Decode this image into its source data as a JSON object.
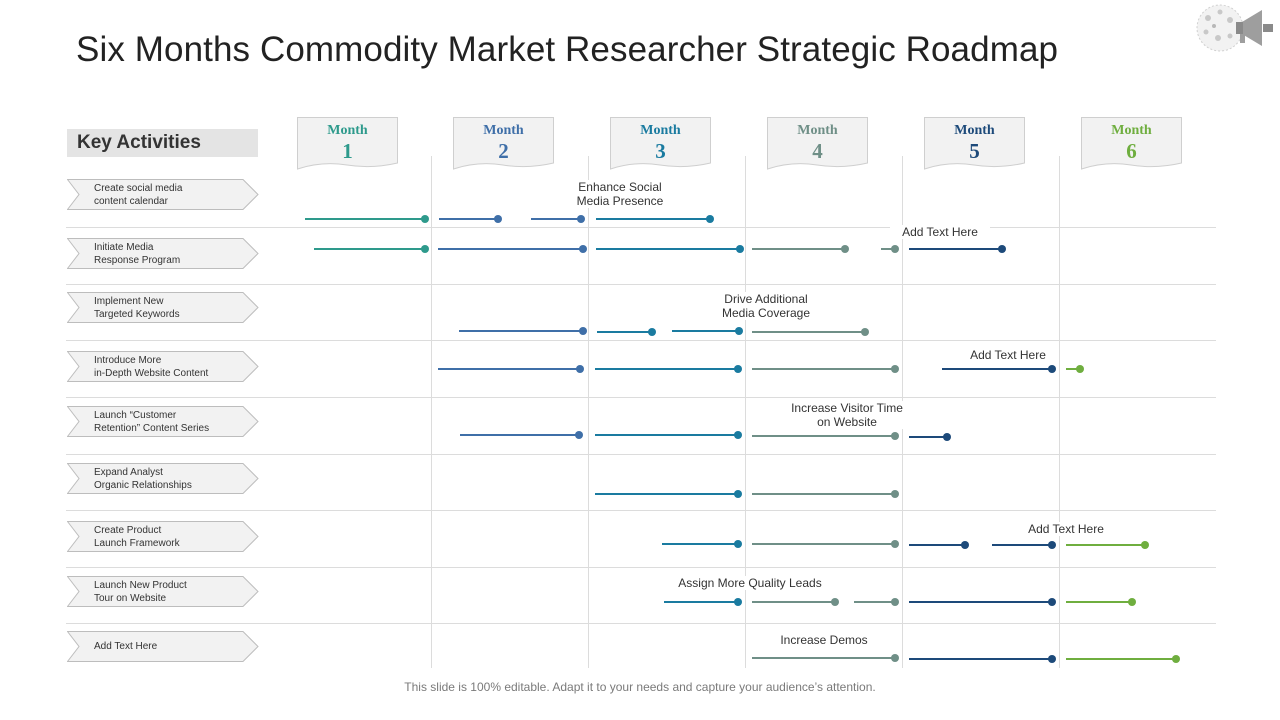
{
  "title": "Six Months Commodity Market Researcher Strategic Roadmap",
  "key_activities_header": "Key Activities",
  "months": [
    {
      "label": "Month",
      "number": "1",
      "color": "#2e9a8c"
    },
    {
      "label": "Month",
      "number": "2",
      "color": "#3f6fa8"
    },
    {
      "label": "Month",
      "number": "3",
      "color": "#1a7ba0"
    },
    {
      "label": "Month",
      "number": "4",
      "color": "#6f8f87"
    },
    {
      "label": "Month",
      "number": "5",
      "color": "#1d4a7a"
    },
    {
      "label": "Month",
      "number": "6",
      "color": "#6fae3f"
    }
  ],
  "activities": [
    "Create social media\ncontent calendar",
    "Initiate  Media\nResponse Program",
    "Implement  New\nTargeted Keywords",
    "Introduce More\nin-Depth Website Content",
    "Launch “Customer\nRetention” Content Series",
    "Expand Analyst\nOrganic Relationships",
    "Create Product\nLaunch Framework",
    "Launch New Product\nTour on Website",
    "Add Text Here"
  ],
  "notes": [
    "Enhance Social\nMedia Presence",
    "Add Text Here",
    "Drive Additional\nMedia Coverage",
    "Add Text Here",
    "Increase Visitor Time\non Website",
    "Add Text Here",
    "Assign More Quality Leads",
    "Increase Demos"
  ],
  "footer": "This slide is 100% editable. Adapt it to your needs and capture your audience’s attention."
}
